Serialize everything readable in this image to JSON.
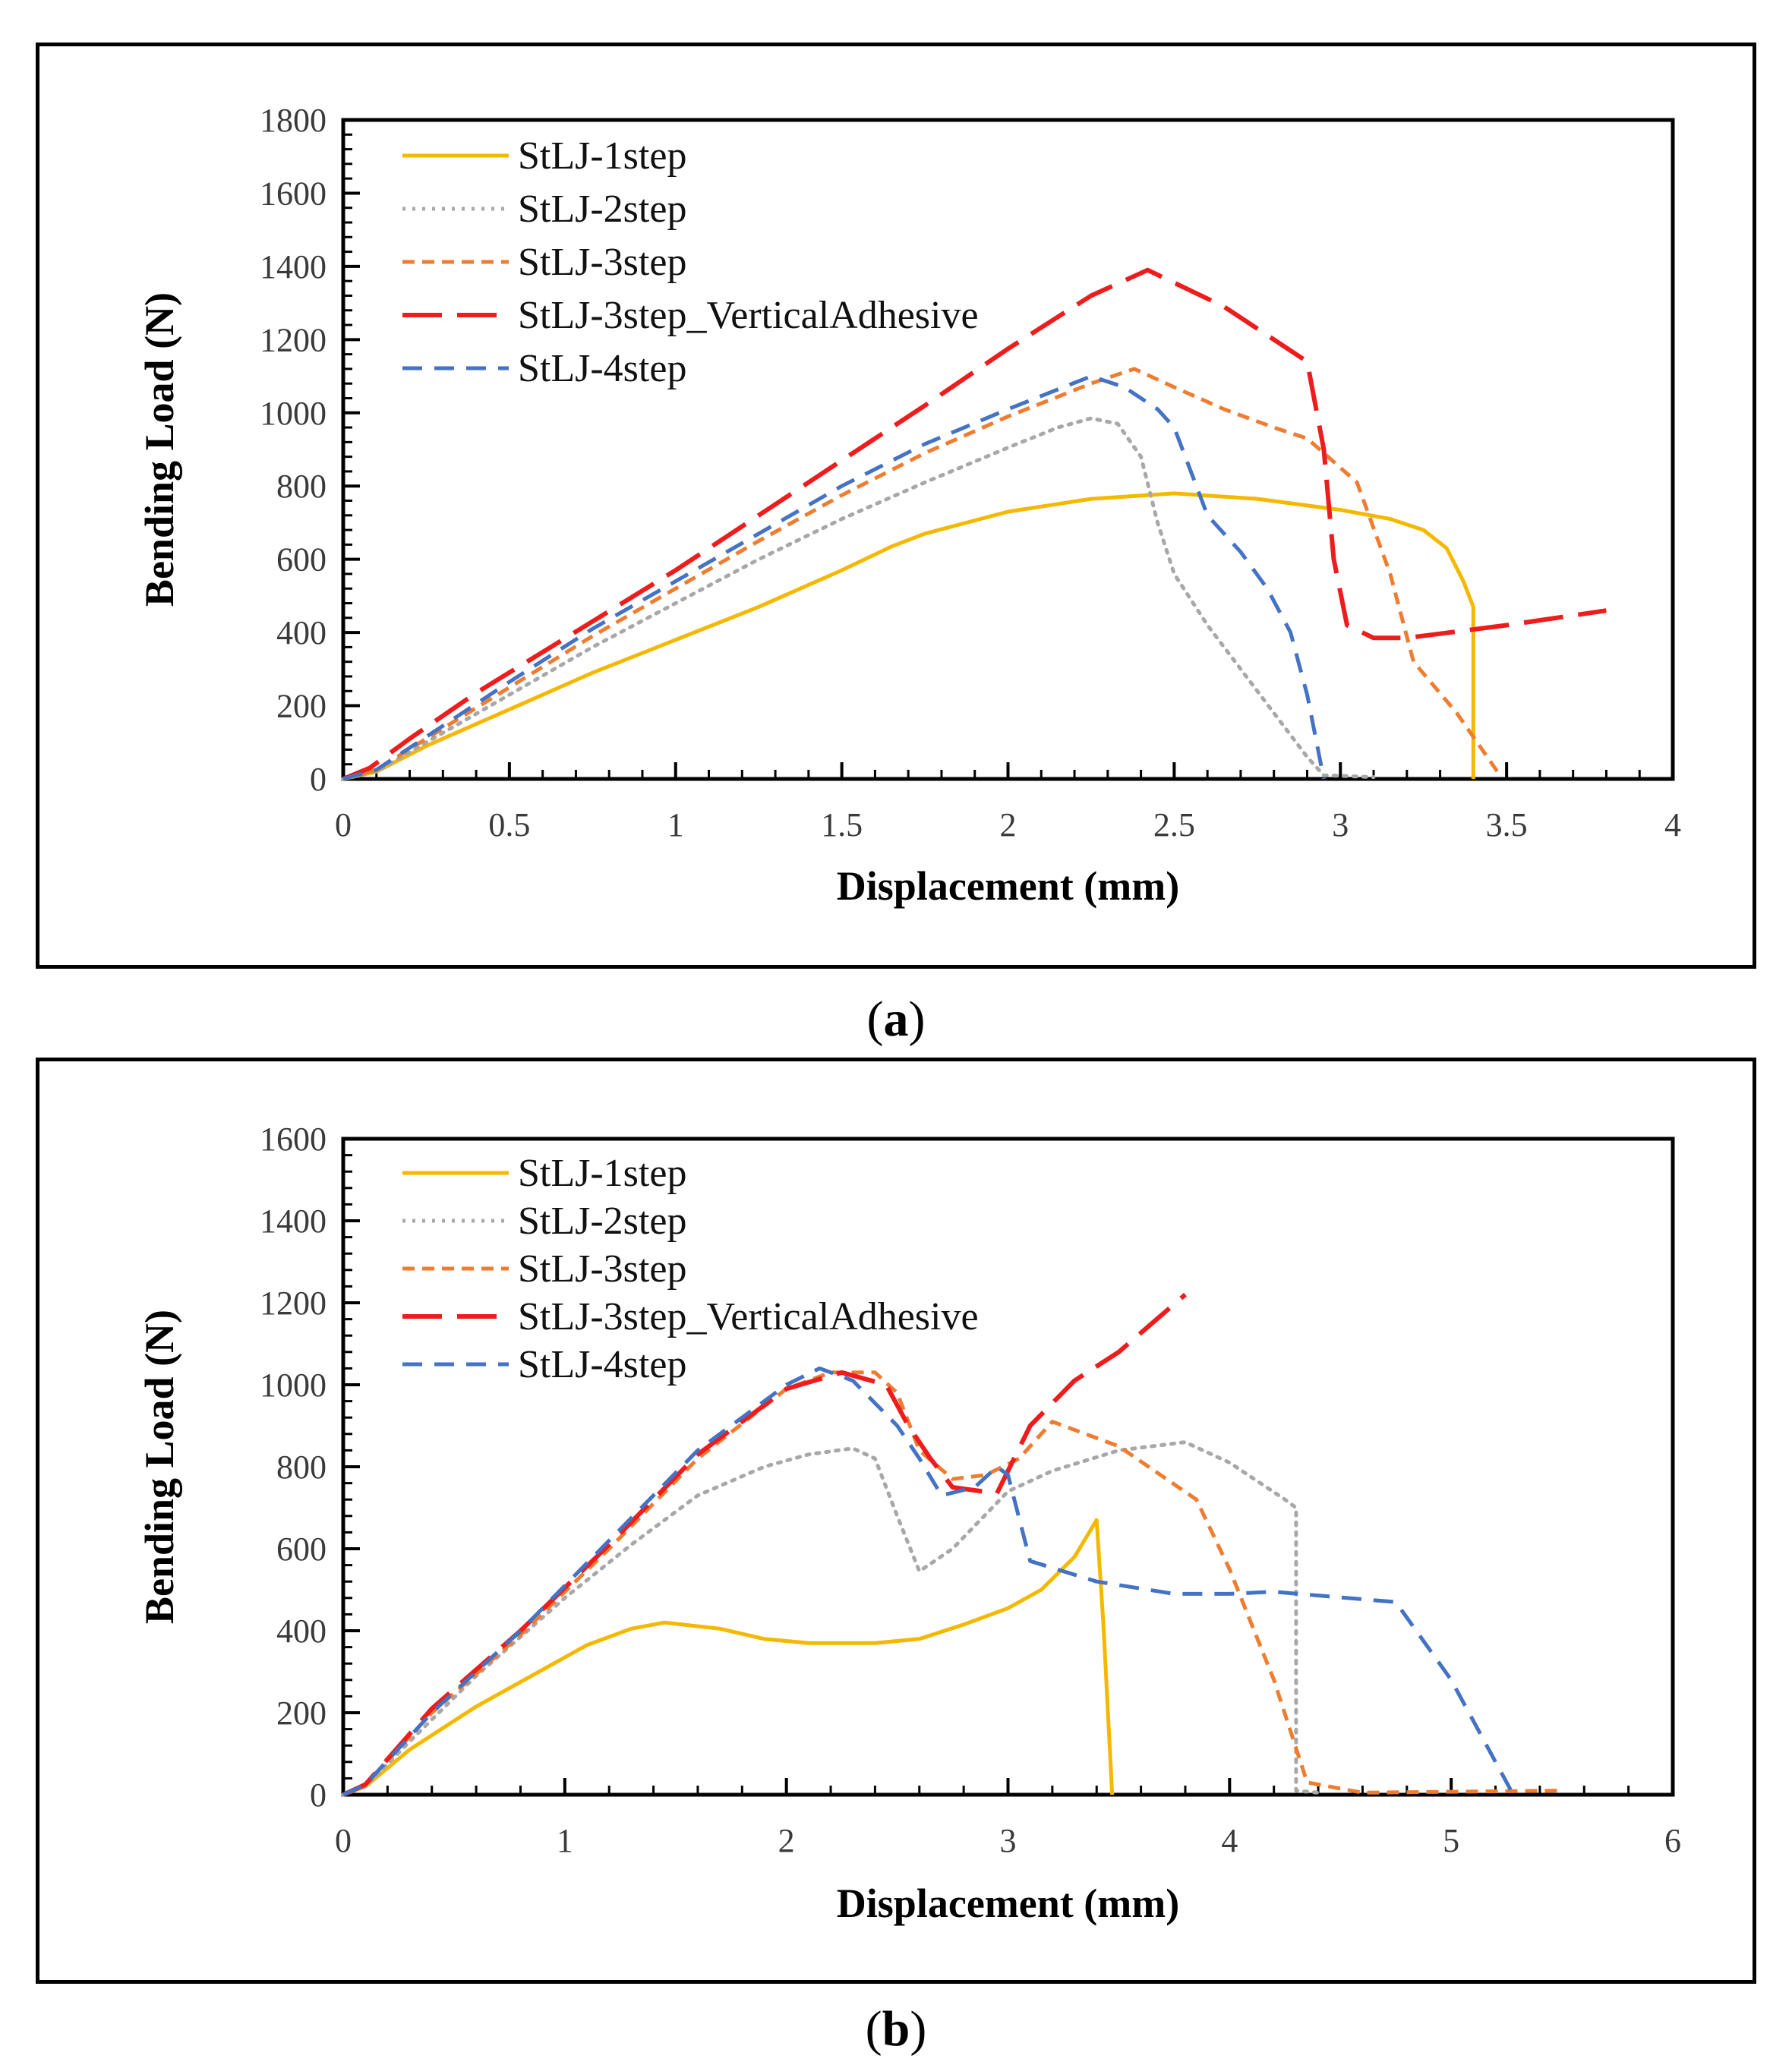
{
  "panels": [
    {
      "caption_open": "(",
      "caption_letter": "a",
      "caption_close": ")"
    },
    {
      "caption_open": "(",
      "caption_letter": "b",
      "caption_close": ")"
    }
  ],
  "chart_data": [
    {
      "type": "line",
      "panel": "a",
      "xlabel": "Displacement (mm)",
      "ylabel": "Bending Load (N)",
      "xlim": [
        0,
        4
      ],
      "ylim": [
        0,
        1800
      ],
      "xticks": [
        0,
        0.5,
        1,
        1.5,
        2,
        2.5,
        3,
        3.5,
        4
      ],
      "xtick_labels": [
        "0",
        "0.5",
        "1",
        "1.5",
        "2",
        "2.5",
        "3",
        "3.5",
        "4"
      ],
      "yticks": [
        0,
        200,
        400,
        600,
        800,
        1000,
        1200,
        1400,
        1600,
        1800
      ],
      "ytick_labels": [
        "0",
        "200",
        "400",
        "600",
        "800",
        "1000",
        "1200",
        "1400",
        "1600",
        "1800"
      ],
      "legend_position": "top-left",
      "series": [
        {
          "name": "StLJ-1step",
          "color": "#f5b800",
          "dash": "solid",
          "points": [
            [
              0,
              0
            ],
            [
              0.1,
              20
            ],
            [
              0.25,
              90
            ],
            [
              0.5,
              190
            ],
            [
              0.75,
              290
            ],
            [
              1,
              380
            ],
            [
              1.25,
              470
            ],
            [
              1.5,
              570
            ],
            [
              1.65,
              635
            ],
            [
              1.75,
              670
            ],
            [
              2,
              730
            ],
            [
              2.25,
              765
            ],
            [
              2.5,
              780
            ],
            [
              2.75,
              765
            ],
            [
              3,
              735
            ],
            [
              3.15,
              710
            ],
            [
              3.25,
              680
            ],
            [
              3.32,
              630
            ],
            [
              3.37,
              540
            ],
            [
              3.4,
              470
            ],
            [
              3.4,
              0
            ]
          ]
        },
        {
          "name": "StLJ-2step",
          "color": "#a8a8a8",
          "dash": "dotted",
          "points": [
            [
              0,
              0
            ],
            [
              0.1,
              20
            ],
            [
              0.25,
              100
            ],
            [
              0.5,
              230
            ],
            [
              0.75,
              360
            ],
            [
              1,
              480
            ],
            [
              1.25,
              600
            ],
            [
              1.5,
              710
            ],
            [
              1.75,
              810
            ],
            [
              2,
              905
            ],
            [
              2.15,
              960
            ],
            [
              2.25,
              985
            ],
            [
              2.33,
              970
            ],
            [
              2.4,
              880
            ],
            [
              2.45,
              700
            ],
            [
              2.5,
              560
            ],
            [
              2.6,
              420
            ],
            [
              2.7,
              300
            ],
            [
              2.8,
              180
            ],
            [
              2.9,
              60
            ],
            [
              2.95,
              10
            ],
            [
              3.1,
              5
            ]
          ]
        },
        {
          "name": "StLJ-3step",
          "color": "#ef7d31",
          "dash": "shortdash",
          "points": [
            [
              0,
              0
            ],
            [
              0.1,
              25
            ],
            [
              0.25,
              110
            ],
            [
              0.5,
              250
            ],
            [
              0.75,
              390
            ],
            [
              1,
              520
            ],
            [
              1.25,
              650
            ],
            [
              1.5,
              775
            ],
            [
              1.75,
              890
            ],
            [
              2,
              990
            ],
            [
              2.25,
              1080
            ],
            [
              2.38,
              1120
            ],
            [
              2.5,
              1070
            ],
            [
              2.65,
              1010
            ],
            [
              2.8,
              960
            ],
            [
              2.9,
              930
            ],
            [
              3.05,
              810
            ],
            [
              3.15,
              560
            ],
            [
              3.22,
              320
            ],
            [
              3.35,
              180
            ],
            [
              3.48,
              10
            ]
          ]
        },
        {
          "name": "StLJ-3step_VerticalAdhesive",
          "color": "#ee1c1c",
          "dash": "longdash",
          "points": [
            [
              0,
              0
            ],
            [
              0.08,
              30
            ],
            [
              0.2,
              110
            ],
            [
              0.4,
              235
            ],
            [
              0.75,
              430
            ],
            [
              1,
              570
            ],
            [
              1.25,
              720
            ],
            [
              1.5,
              870
            ],
            [
              1.75,
              1020
            ],
            [
              2,
              1175
            ],
            [
              2.25,
              1320
            ],
            [
              2.42,
              1390
            ],
            [
              2.65,
              1290
            ],
            [
              2.9,
              1140
            ],
            [
              2.95,
              900
            ],
            [
              2.98,
              600
            ],
            [
              3.02,
              420
            ],
            [
              3.1,
              385
            ],
            [
              3.2,
              385
            ],
            [
              3.5,
              420
            ],
            [
              3.8,
              460
            ]
          ]
        },
        {
          "name": "StLJ-4step",
          "color": "#4472c4",
          "dash": "mediumdash",
          "points": [
            [
              0,
              0
            ],
            [
              0.1,
              25
            ],
            [
              0.25,
              115
            ],
            [
              0.5,
              265
            ],
            [
              0.75,
              410
            ],
            [
              1,
              540
            ],
            [
              1.25,
              670
            ],
            [
              1.5,
              800
            ],
            [
              1.75,
              915
            ],
            [
              2,
              1010
            ],
            [
              2.25,
              1100
            ],
            [
              2.35,
              1070
            ],
            [
              2.45,
              1010
            ],
            [
              2.5,
              960
            ],
            [
              2.6,
              720
            ],
            [
              2.7,
              620
            ],
            [
              2.78,
              520
            ],
            [
              2.85,
              400
            ],
            [
              2.9,
              230
            ],
            [
              2.95,
              0
            ]
          ]
        }
      ]
    },
    {
      "type": "line",
      "panel": "b",
      "xlabel": "Displacement (mm)",
      "ylabel": "Bending Load (N)",
      "xlim": [
        0,
        6
      ],
      "ylim": [
        0,
        1600
      ],
      "xticks": [
        0,
        1,
        2,
        3,
        4,
        5,
        6
      ],
      "xtick_labels": [
        "0",
        "1",
        "2",
        "3",
        "4",
        "5",
        "6"
      ],
      "yticks": [
        0,
        200,
        400,
        600,
        800,
        1000,
        1200,
        1400,
        1600
      ],
      "ytick_labels": [
        "0",
        "200",
        "400",
        "600",
        "800",
        "1000",
        "1200",
        "1400",
        "1600"
      ],
      "legend_position": "top-left",
      "series": [
        {
          "name": "StLJ-1step",
          "color": "#f5b800",
          "dash": "solid",
          "points": [
            [
              0,
              0
            ],
            [
              0.1,
              20
            ],
            [
              0.3,
              110
            ],
            [
              0.6,
              215
            ],
            [
              0.9,
              305
            ],
            [
              1.1,
              365
            ],
            [
              1.3,
              405
            ],
            [
              1.45,
              420
            ],
            [
              1.7,
              405
            ],
            [
              1.9,
              380
            ],
            [
              2.1,
              370
            ],
            [
              2.4,
              370
            ],
            [
              2.6,
              380
            ],
            [
              2.8,
              415
            ],
            [
              3,
              455
            ],
            [
              3.15,
              500
            ],
            [
              3.3,
              580
            ],
            [
              3.4,
              670
            ],
            [
              3.43,
              420
            ],
            [
              3.47,
              0
            ]
          ]
        },
        {
          "name": "StLJ-2step",
          "color": "#a8a8a8",
          "dash": "dotted",
          "points": [
            [
              0,
              0
            ],
            [
              0.1,
              20
            ],
            [
              0.3,
              130
            ],
            [
              0.6,
              290
            ],
            [
              1,
              480
            ],
            [
              1.3,
              610
            ],
            [
              1.6,
              730
            ],
            [
              1.9,
              800
            ],
            [
              2.1,
              830
            ],
            [
              2.3,
              845
            ],
            [
              2.4,
              820
            ],
            [
              2.5,
              680
            ],
            [
              2.6,
              545
            ],
            [
              2.75,
              600
            ],
            [
              3,
              740
            ],
            [
              3.2,
              790
            ],
            [
              3.5,
              840
            ],
            [
              3.8,
              860
            ],
            [
              4,
              810
            ],
            [
              4.25,
              720
            ],
            [
              4.3,
              700
            ],
            [
              4.3,
              10
            ],
            [
              4.4,
              5
            ]
          ]
        },
        {
          "name": "StLJ-3step",
          "color": "#ef7d31",
          "dash": "shortdash",
          "points": [
            [
              0,
              0
            ],
            [
              0.1,
              25
            ],
            [
              0.4,
              200
            ],
            [
              0.8,
              390
            ],
            [
              1.2,
              600
            ],
            [
              1.6,
              820
            ],
            [
              2,
              990
            ],
            [
              2.2,
              1030
            ],
            [
              2.4,
              1030
            ],
            [
              2.5,
              980
            ],
            [
              2.6,
              840
            ],
            [
              2.75,
              770
            ],
            [
              2.9,
              780
            ],
            [
              3.05,
              820
            ],
            [
              3.2,
              910
            ],
            [
              3.5,
              850
            ],
            [
              3.85,
              720
            ],
            [
              4,
              550
            ],
            [
              4.2,
              280
            ],
            [
              4.35,
              30
            ],
            [
              4.6,
              5
            ],
            [
              5.5,
              10
            ]
          ]
        },
        {
          "name": "StLJ-3step_VerticalAdhesive",
          "color": "#ee1c1c",
          "dash": "longdash",
          "points": [
            [
              0,
              0
            ],
            [
              0.1,
              25
            ],
            [
              0.4,
              210
            ],
            [
              0.8,
              400
            ],
            [
              1.2,
              610
            ],
            [
              1.6,
              830
            ],
            [
              2,
              990
            ],
            [
              2.25,
              1030
            ],
            [
              2.45,
              1000
            ],
            [
              2.55,
              900
            ],
            [
              2.65,
              820
            ],
            [
              2.75,
              750
            ],
            [
              2.95,
              735
            ],
            [
              3.1,
              900
            ],
            [
              3.3,
              1010
            ],
            [
              3.5,
              1080
            ],
            [
              3.8,
              1220
            ]
          ]
        },
        {
          "name": "StLJ-4step",
          "color": "#4472c4",
          "dash": "mediumdash",
          "points": [
            [
              0,
              0
            ],
            [
              0.1,
              25
            ],
            [
              0.4,
              200
            ],
            [
              0.8,
              400
            ],
            [
              1.2,
              620
            ],
            [
              1.6,
              840
            ],
            [
              2,
              1000
            ],
            [
              2.15,
              1040
            ],
            [
              2.3,
              1010
            ],
            [
              2.5,
              900
            ],
            [
              2.6,
              820
            ],
            [
              2.7,
              730
            ],
            [
              2.85,
              750
            ],
            [
              2.95,
              800
            ],
            [
              3,
              780
            ],
            [
              3.1,
              570
            ],
            [
              3.4,
              520
            ],
            [
              3.75,
              490
            ],
            [
              4,
              490
            ],
            [
              4.2,
              495
            ],
            [
              4.75,
              470
            ],
            [
              5,
              280
            ],
            [
              5.28,
              0
            ]
          ]
        }
      ]
    }
  ]
}
